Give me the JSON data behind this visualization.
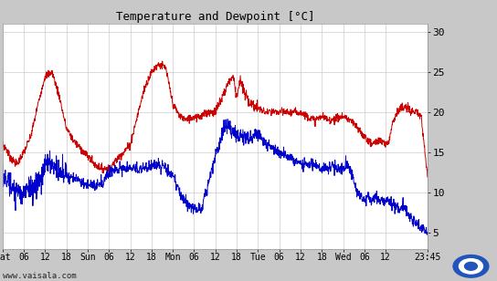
{
  "title": "Temperature and Dewpoint [°C]",
  "ylim": [
    3,
    31
  ],
  "yticks": [
    5,
    10,
    15,
    20,
    25,
    30
  ],
  "x_ticks": [
    0,
    6,
    12,
    18,
    24,
    30,
    36,
    42,
    48,
    54,
    60,
    66,
    72,
    78,
    84,
    90,
    96,
    102,
    108,
    119.75
  ],
  "x_labels": [
    "Sat",
    "06",
    "12",
    "18",
    "Sun",
    "06",
    "12",
    "18",
    "Mon",
    "06",
    "12",
    "18",
    "Tue",
    "06",
    "12",
    "18",
    "Wed",
    "06",
    "12",
    "23:45"
  ],
  "bg_color": "#c8c8c8",
  "plot_bg_color": "#ffffff",
  "grid_color": "#cccccc",
  "temp_color": "#cc0000",
  "dewp_color": "#0000cc",
  "watermark": "www.vaisala.com",
  "line_width": 0.7,
  "temp_cp": [
    [
      0,
      16
    ],
    [
      1,
      15.5
    ],
    [
      2,
      14.5
    ],
    [
      3,
      14
    ],
    [
      4,
      13.5
    ],
    [
      6,
      15
    ],
    [
      8,
      17
    ],
    [
      10,
      21
    ],
    [
      12,
      24.5
    ],
    [
      14,
      25
    ],
    [
      16,
      22
    ],
    [
      18,
      18
    ],
    [
      20,
      16.5
    ],
    [
      22,
      15.5
    ],
    [
      23,
      15
    ],
    [
      24,
      14.5
    ],
    [
      26,
      13.5
    ],
    [
      28,
      13
    ],
    [
      30,
      13
    ],
    [
      32,
      14
    ],
    [
      36,
      16
    ],
    [
      40,
      23
    ],
    [
      42,
      25
    ],
    [
      44,
      26
    ],
    [
      46,
      25.5
    ],
    [
      48,
      21
    ],
    [
      50,
      19.5
    ],
    [
      52,
      19
    ],
    [
      54,
      19.5
    ],
    [
      56,
      19.5
    ],
    [
      58,
      20
    ],
    [
      60,
      20
    ],
    [
      62,
      22
    ],
    [
      64,
      24
    ],
    [
      65,
      24.5
    ],
    [
      66,
      22
    ],
    [
      67,
      24
    ],
    [
      68,
      22.5
    ],
    [
      70,
      21
    ],
    [
      72,
      20.5
    ],
    [
      74,
      20
    ],
    [
      76,
      20
    ],
    [
      78,
      20
    ],
    [
      80,
      20
    ],
    [
      84,
      20
    ],
    [
      88,
      19
    ],
    [
      90,
      19.5
    ],
    [
      92,
      19
    ],
    [
      96,
      19.5
    ],
    [
      98,
      19
    ],
    [
      100,
      18
    ],
    [
      102,
      17
    ],
    [
      104,
      16
    ],
    [
      106,
      16.5
    ],
    [
      108,
      16
    ],
    [
      109,
      16.5
    ],
    [
      110,
      19
    ],
    [
      112,
      20.5
    ],
    [
      114,
      20.5
    ],
    [
      116,
      20
    ],
    [
      118,
      19.5
    ],
    [
      119.75,
      12
    ]
  ],
  "dewp_cp": [
    [
      0,
      12
    ],
    [
      1,
      11.5
    ],
    [
      2,
      11
    ],
    [
      3,
      10.5
    ],
    [
      4,
      10.5
    ],
    [
      5,
      10
    ],
    [
      6,
      10
    ],
    [
      7,
      10
    ],
    [
      8,
      10.5
    ],
    [
      9,
      11
    ],
    [
      10,
      11.5
    ],
    [
      11,
      12
    ],
    [
      12,
      13
    ],
    [
      13,
      13.5
    ],
    [
      14,
      13.5
    ],
    [
      15,
      13.5
    ],
    [
      16,
      13
    ],
    [
      18,
      12
    ],
    [
      20,
      12
    ],
    [
      22,
      11.5
    ],
    [
      23,
      11
    ],
    [
      24,
      11
    ],
    [
      26,
      11
    ],
    [
      28,
      11
    ],
    [
      30,
      12.5
    ],
    [
      32,
      13
    ],
    [
      34,
      13
    ],
    [
      36,
      13
    ],
    [
      38,
      13
    ],
    [
      40,
      13
    ],
    [
      42,
      13.5
    ],
    [
      44,
      13.5
    ],
    [
      46,
      13
    ],
    [
      48,
      12
    ],
    [
      50,
      10
    ],
    [
      52,
      8.5
    ],
    [
      54,
      8
    ],
    [
      56,
      8
    ],
    [
      58,
      11
    ],
    [
      60,
      14.5
    ],
    [
      62,
      17.5
    ],
    [
      63,
      18.5
    ],
    [
      64,
      18
    ],
    [
      65,
      17.5
    ],
    [
      66,
      17
    ],
    [
      68,
      17
    ],
    [
      70,
      16.5
    ],
    [
      72,
      17.5
    ],
    [
      74,
      16
    ],
    [
      76,
      15.5
    ],
    [
      78,
      15
    ],
    [
      80,
      14.5
    ],
    [
      82,
      14
    ],
    [
      84,
      13.5
    ],
    [
      86,
      13.5
    ],
    [
      88,
      13.5
    ],
    [
      90,
      13
    ],
    [
      92,
      13
    ],
    [
      93,
      13.5
    ],
    [
      94,
      13
    ],
    [
      96,
      13
    ],
    [
      97,
      13.5
    ],
    [
      98,
      13
    ],
    [
      100,
      10
    ],
    [
      102,
      9
    ],
    [
      103,
      9.5
    ],
    [
      104,
      9
    ],
    [
      105,
      9.5
    ],
    [
      106,
      9
    ],
    [
      108,
      9
    ],
    [
      109,
      9
    ],
    [
      110,
      8.5
    ],
    [
      112,
      8
    ],
    [
      113,
      8.5
    ],
    [
      114,
      7.5
    ],
    [
      115,
      7
    ],
    [
      116,
      6.5
    ],
    [
      117,
      6
    ],
    [
      118,
      5.5
    ],
    [
      119,
      5.5
    ],
    [
      119.75,
      5
    ]
  ]
}
